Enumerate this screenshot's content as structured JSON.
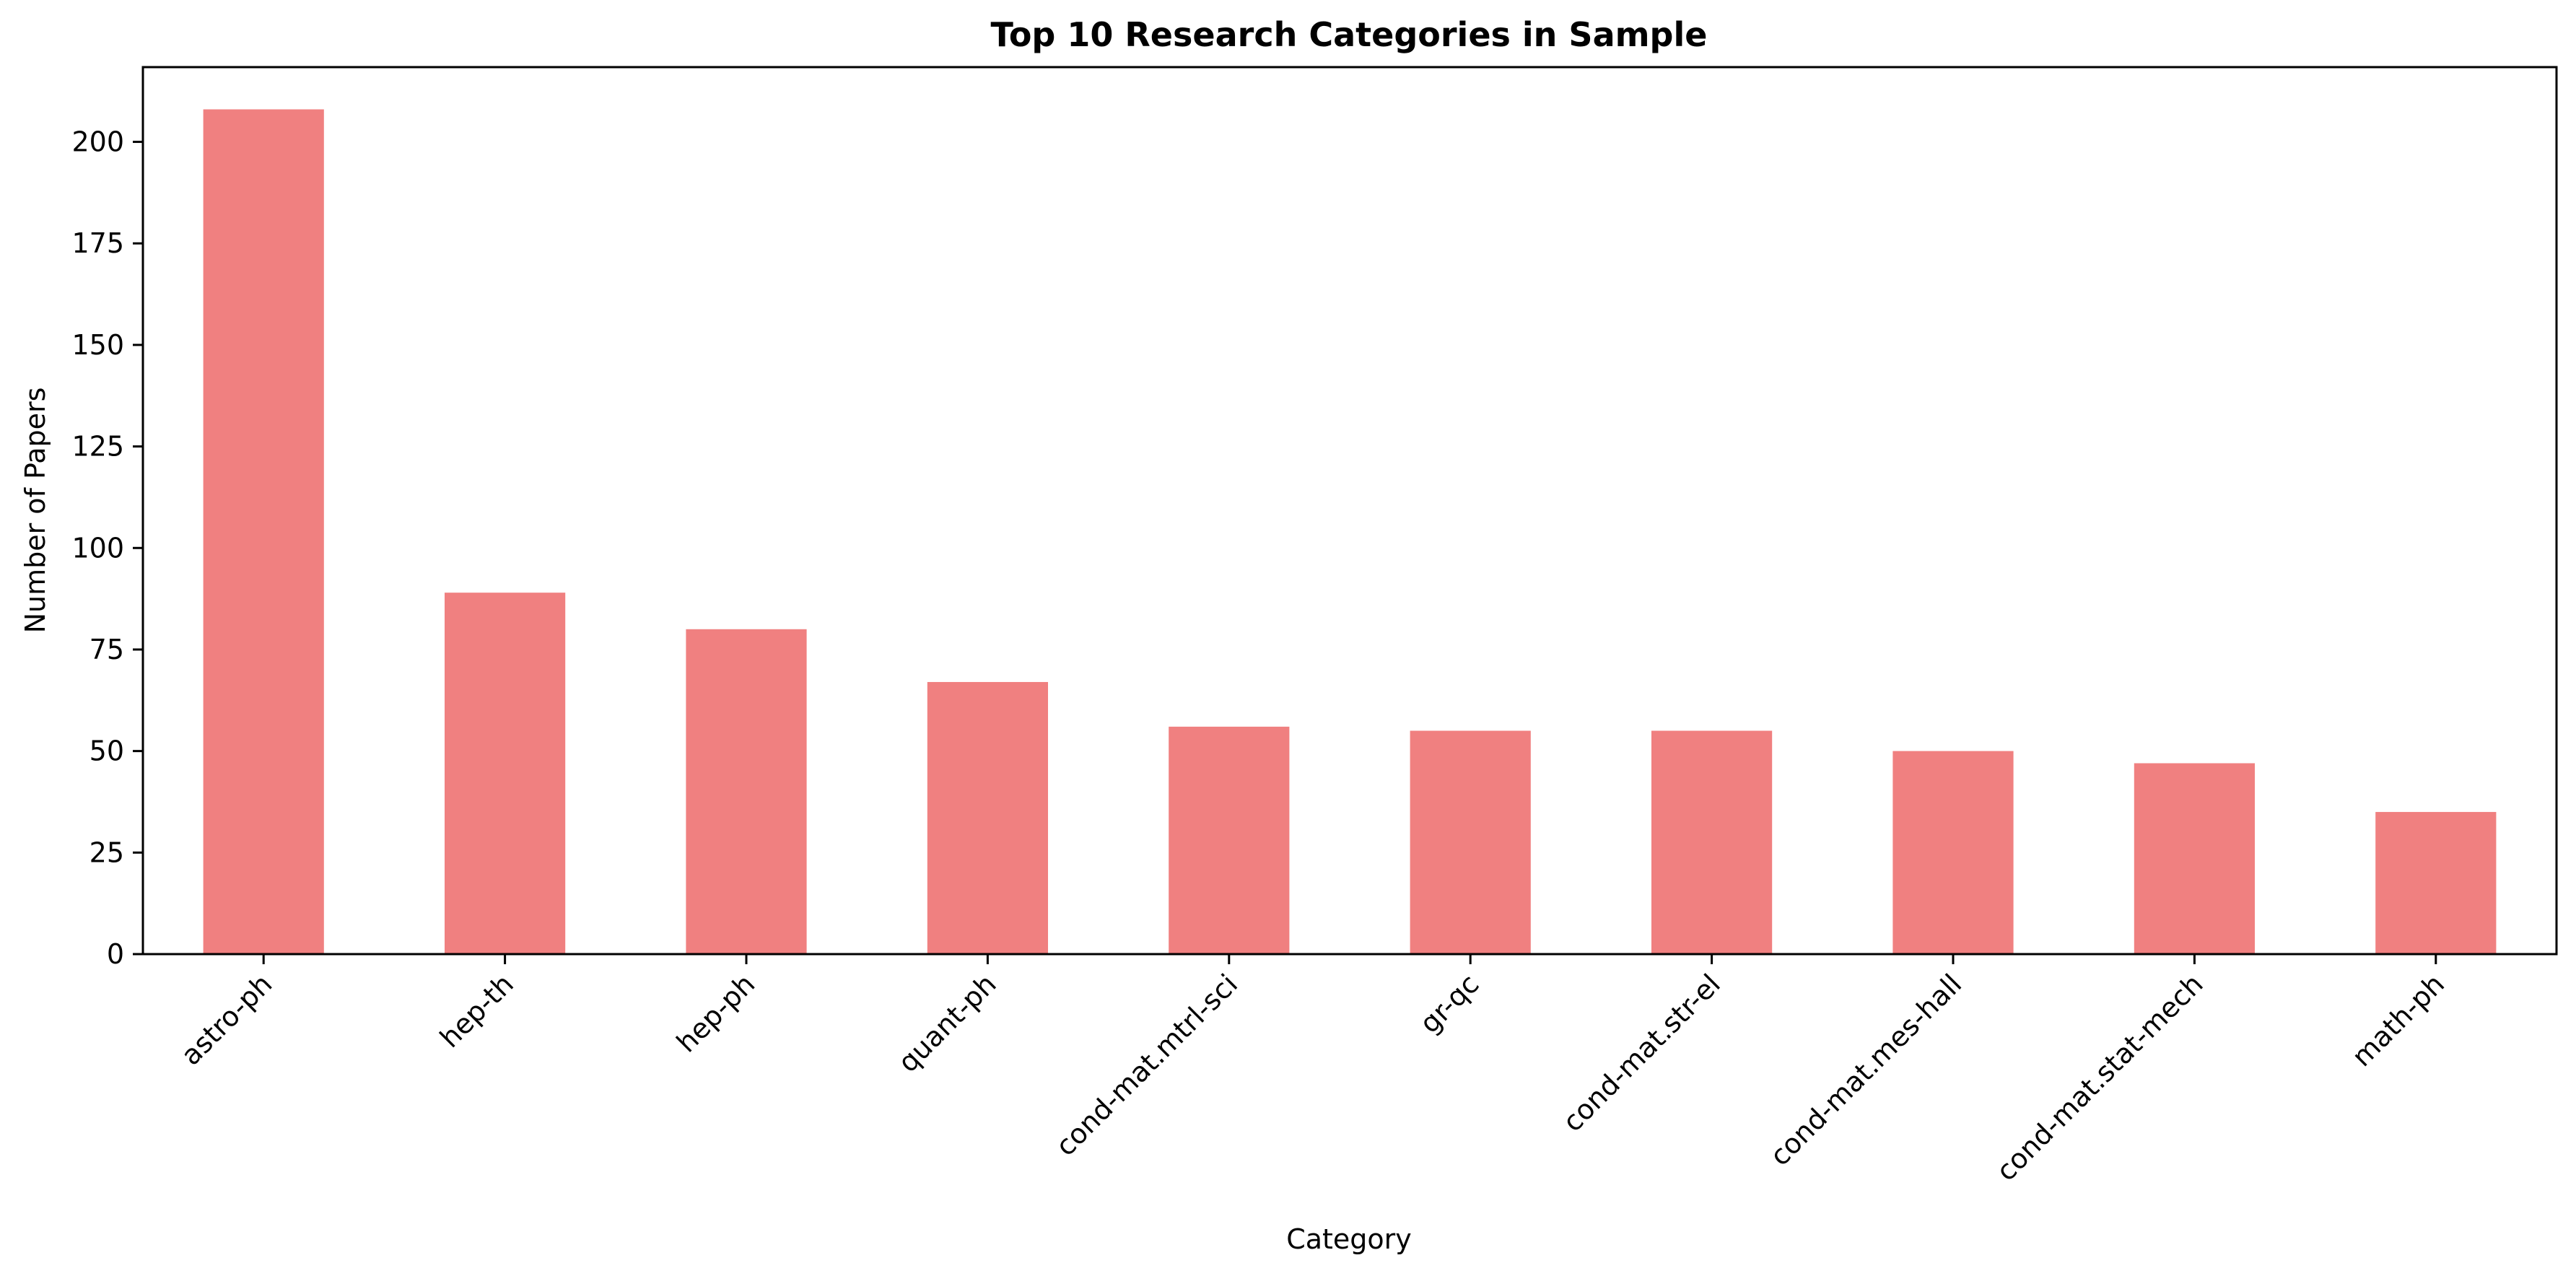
{
  "chart_data": {
    "type": "bar",
    "title": "Top 10 Research Categories in Sample",
    "xlabel": "Category",
    "ylabel": "Number of Papers",
    "categories": [
      "astro-ph",
      "hep-th",
      "hep-ph",
      "quant-ph",
      "cond-mat.mtrl-sci",
      "gr-qc",
      "cond-mat.str-el",
      "cond-mat.mes-hall",
      "cond-mat.stat-mech",
      "math-ph"
    ],
    "values": [
      208,
      89,
      80,
      67,
      56,
      55,
      55,
      50,
      47,
      35
    ],
    "ylim": [
      0,
      218.4
    ],
    "yticks": [
      0,
      25,
      50,
      75,
      100,
      125,
      150,
      175,
      200
    ],
    "bar_color": "#f08080",
    "grid": false,
    "legend": "none"
  }
}
